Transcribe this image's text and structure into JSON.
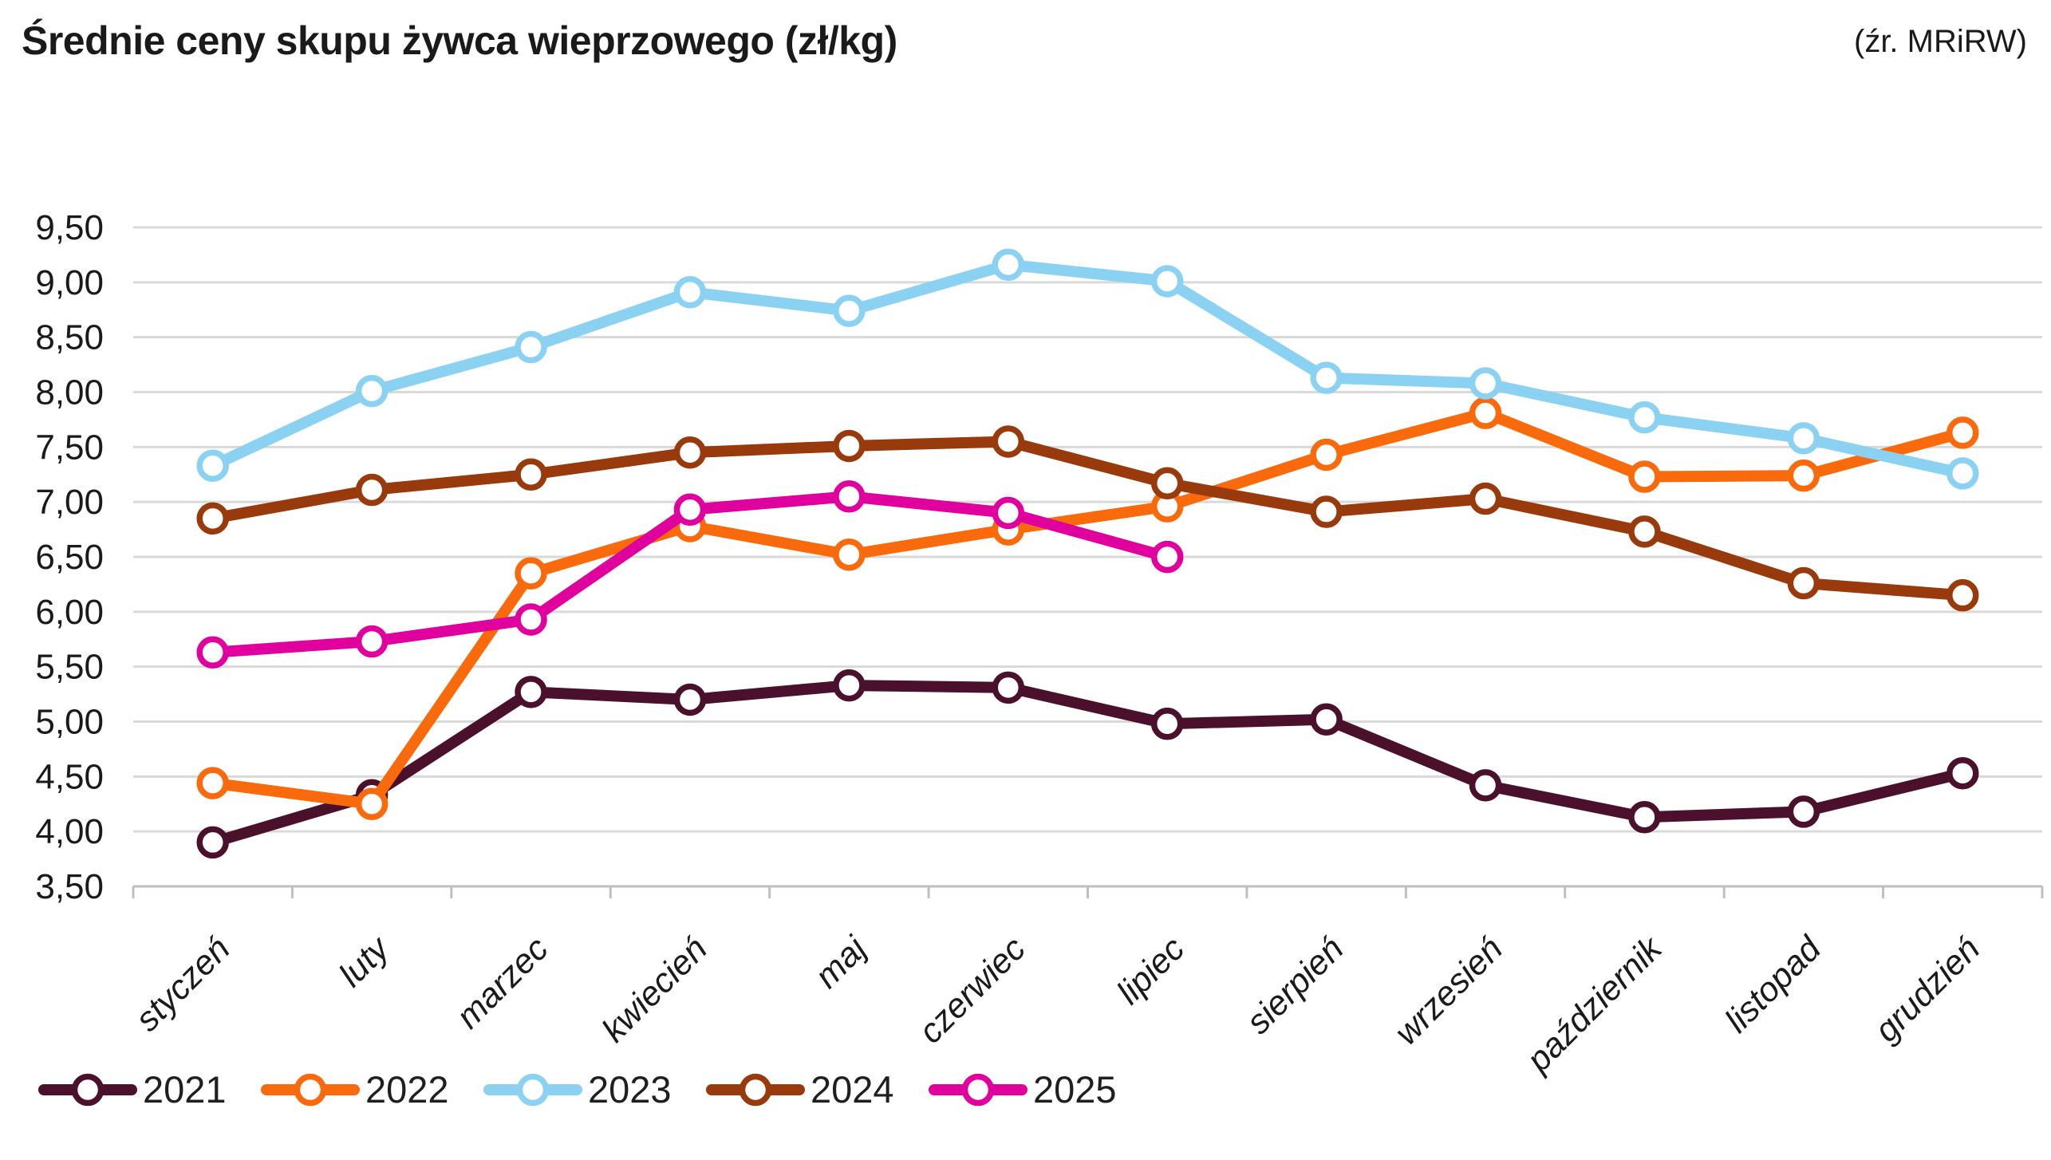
{
  "header": {
    "title": "Średnie ceny skupu żywca wieprzowego (zł/kg)",
    "source": "(źr. MRiRW)"
  },
  "chart_data": {
    "type": "line",
    "title": "Średnie ceny skupu żywca wieprzowego (zł/kg)",
    "source": "(źr. MRiRW)",
    "unit": "zł/kg",
    "categories": [
      "styczeń",
      "luty",
      "marzec",
      "kwiecień",
      "maj",
      "czerwiec",
      "lipiec",
      "sierpień",
      "wrzesień",
      "październik",
      "listopad",
      "grudzień"
    ],
    "series": [
      {
        "name": "2021",
        "color": "#4A102C",
        "values": [
          3.9,
          4.33,
          5.27,
          5.2,
          5.33,
          5.31,
          4.98,
          5.02,
          4.42,
          4.13,
          4.18,
          4.53
        ]
      },
      {
        "name": "2022",
        "color": "#F86A0B",
        "values": [
          4.44,
          4.25,
          6.35,
          6.78,
          6.52,
          6.75,
          6.96,
          7.43,
          7.81,
          7.23,
          7.24,
          7.63
        ]
      },
      {
        "name": "2023",
        "color": "#8BD2F2",
        "values": [
          7.33,
          8.01,
          8.41,
          8.91,
          8.74,
          9.16,
          9.01,
          8.13,
          8.08,
          7.77,
          7.58,
          7.26
        ]
      },
      {
        "name": "2024",
        "color": "#983A0C",
        "values": [
          6.85,
          7.11,
          7.25,
          7.45,
          7.51,
          7.55,
          7.17,
          6.91,
          7.03,
          6.73,
          6.26,
          6.15
        ]
      },
      {
        "name": "2025",
        "color": "#E0009D",
        "values": [
          5.63,
          5.73,
          5.93,
          6.93,
          7.05,
          6.9,
          6.5
        ]
      }
    ],
    "ylim": [
      3.5,
      9.5
    ],
    "ytick_step": 0.5,
    "ytick_labels": [
      "3,50",
      "4,00",
      "4,50",
      "5,00",
      "5,50",
      "6,00",
      "6,50",
      "7,00",
      "7,50",
      "8,00",
      "8,50",
      "9,00",
      "9,50"
    ],
    "grid": true,
    "grid_color": "#D9D9D9",
    "axis_color": "#BFBFBF",
    "text_color": "#1A1A1A",
    "legend_position": "bottom-left"
  }
}
